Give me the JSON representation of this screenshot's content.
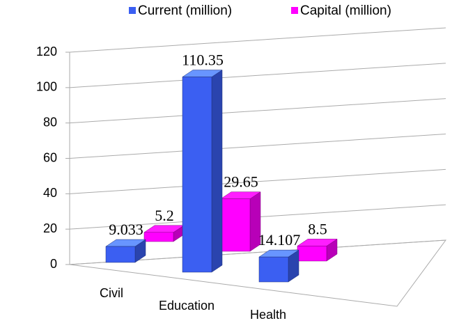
{
  "chart_data": {
    "type": "bar3d",
    "categories": [
      "Civil",
      "Education",
      "Health"
    ],
    "series": [
      {
        "name": "Current (million)",
        "color": "#3b5ff2",
        "values": [
          9.033,
          110.35,
          14.107
        ]
      },
      {
        "name": "Capital (million)",
        "color": "#ff00ff",
        "values": [
          5.2,
          29.65,
          8.5
        ]
      }
    ],
    "ylim": [
      0,
      120
    ],
    "yticks": [
      0,
      20,
      40,
      60,
      80,
      100,
      120
    ],
    "grid": true,
    "legend": "top"
  }
}
